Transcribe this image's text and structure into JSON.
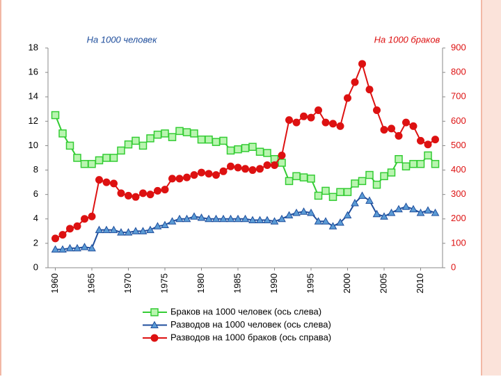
{
  "chart_data": {
    "type": "line",
    "y_label": "На 1000 человек",
    "y2_label": "На 1000 браков",
    "x": [
      1960,
      1961,
      1962,
      1963,
      1964,
      1965,
      1966,
      1967,
      1968,
      1969,
      1970,
      1971,
      1972,
      1973,
      1974,
      1975,
      1976,
      1977,
      1978,
      1979,
      1980,
      1981,
      1982,
      1983,
      1984,
      1985,
      1986,
      1987,
      1988,
      1989,
      1990,
      1991,
      1992,
      1993,
      1994,
      1995,
      1996,
      1997,
      1998,
      1999,
      2000,
      2001,
      2002,
      2003,
      2004,
      2005,
      2006,
      2007,
      2008,
      2009,
      2010,
      2011,
      2012
    ],
    "xlim": [
      1959,
      2013
    ],
    "xticks": [
      1960,
      1965,
      1970,
      1975,
      1980,
      1985,
      1990,
      1995,
      2000,
      2005,
      2010
    ],
    "ylim": [
      0,
      18
    ],
    "yticks": [
      0,
      2,
      4,
      6,
      8,
      10,
      12,
      14,
      16,
      18
    ],
    "y2lim": [
      0,
      900
    ],
    "y2ticks": [
      0,
      100,
      200,
      300,
      400,
      500,
      600,
      700,
      800,
      900
    ],
    "series": [
      {
        "name": "Браков на 1000 человек (ось слева)",
        "color": "#33cc33",
        "marker": "square",
        "values": [
          12.5,
          11.0,
          10.0,
          9.0,
          8.5,
          8.5,
          8.8,
          9.0,
          9.0,
          9.6,
          10.1,
          10.4,
          10.0,
          10.6,
          10.9,
          11.0,
          10.7,
          11.2,
          11.1,
          11.0,
          10.5,
          10.5,
          10.3,
          10.4,
          9.6,
          9.7,
          9.8,
          9.9,
          9.5,
          9.4,
          8.9,
          8.6,
          7.1,
          7.5,
          7.4,
          7.3,
          5.9,
          6.3,
          5.8,
          6.2,
          6.2,
          6.9,
          7.1,
          7.6,
          6.8,
          7.5,
          7.8,
          8.9,
          8.3,
          8.5,
          8.5,
          9.2,
          8.5
        ]
      },
      {
        "name": "Разводов на 1000 человек (ось слева)",
        "color": "#1f4e9c",
        "marker": "triangle",
        "values": [
          1.5,
          1.5,
          1.6,
          1.6,
          1.7,
          1.6,
          3.1,
          3.1,
          3.1,
          2.9,
          2.9,
          3.0,
          3.0,
          3.1,
          3.4,
          3.5,
          3.8,
          4.0,
          4.0,
          4.2,
          4.1,
          4.0,
          4.0,
          4.0,
          4.0,
          4.0,
          4.0,
          3.9,
          3.9,
          3.9,
          3.8,
          4.0,
          4.3,
          4.5,
          4.6,
          4.5,
          3.8,
          3.8,
          3.4,
          3.7,
          4.3,
          5.3,
          5.9,
          5.5,
          4.4,
          4.2,
          4.5,
          4.8,
          5.0,
          4.8,
          4.5,
          4.7,
          4.5
        ]
      },
      {
        "name": "Разводов на 1000 браков (ось справа)",
        "color": "#dd1111",
        "marker": "circle",
        "axis": "y2",
        "values": [
          120,
          135,
          160,
          170,
          200,
          210,
          360,
          350,
          345,
          305,
          295,
          290,
          305,
          300,
          315,
          320,
          365,
          365,
          370,
          380,
          390,
          385,
          380,
          395,
          415,
          410,
          405,
          400,
          405,
          420,
          420,
          460,
          605,
          595,
          620,
          615,
          645,
          595,
          590,
          580,
          695,
          760,
          835,
          730,
          645,
          565,
          570,
          540,
          595,
          580,
          520,
          505,
          525
        ]
      }
    ]
  }
}
